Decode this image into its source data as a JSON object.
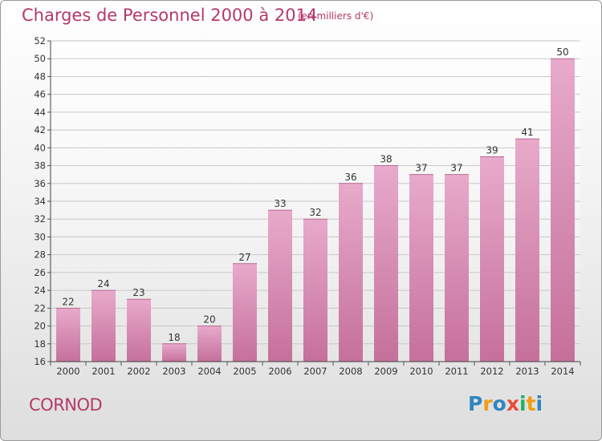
{
  "title": "Charges de Personnel 2000 à 2014",
  "subtitle": "(en milliers d'€)",
  "commune": "CORNOD",
  "logo": {
    "letters": [
      "P",
      "r",
      "o",
      "x",
      "i",
      "t",
      "i"
    ],
    "colors": [
      "#2e86c1",
      "#f39c12",
      "#2e86c1",
      "#e74c3c",
      "#27ae60",
      "#f39c12",
      "#2e86c1"
    ]
  },
  "colors": {
    "bar_top": "#e8aacb",
    "bar_bottom": "#c5709b",
    "text_accent": "#b4396a"
  },
  "chart_data": {
    "type": "bar",
    "categories": [
      "2000",
      "2001",
      "2002",
      "2003",
      "2004",
      "2005",
      "2006",
      "2007",
      "2008",
      "2009",
      "2010",
      "2011",
      "2012",
      "2013",
      "2014"
    ],
    "values": [
      22,
      24,
      23,
      18,
      20,
      27,
      33,
      32,
      36,
      38,
      37,
      37,
      39,
      41,
      50
    ],
    "ylim": [
      16,
      52
    ],
    "yticks": [
      16,
      18,
      20,
      22,
      24,
      26,
      28,
      30,
      32,
      34,
      36,
      38,
      40,
      42,
      44,
      46,
      48,
      50,
      52
    ],
    "grid": true,
    "legend": "none"
  }
}
